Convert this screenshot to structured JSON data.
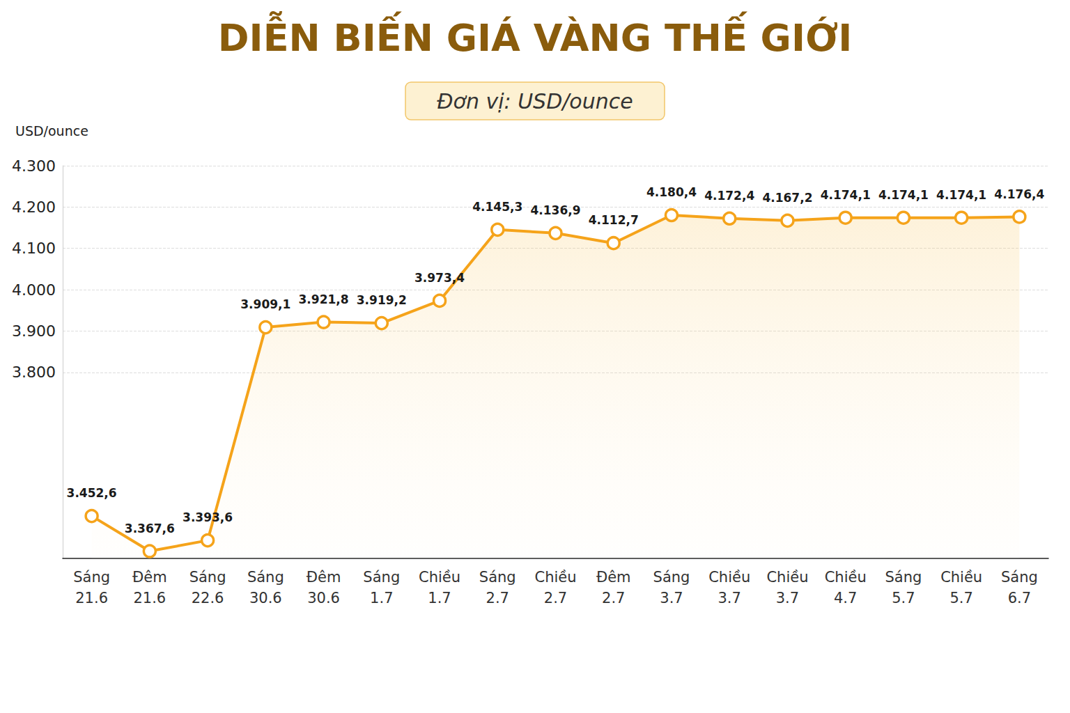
{
  "chart_data": {
    "type": "line",
    "title": "DIỄN BIẾN GIÁ VÀNG THẾ GIỚI",
    "subtitle": "Đơn vị: USD/ounce",
    "y_label": "USD/ounce",
    "categories": [
      "Sáng\n21.6",
      "Đêm\n21.6",
      "Sáng\n22.6",
      "Sáng\n30.6",
      "Đêm\n30.6",
      "Sáng\n1.7",
      "Chiều\n1.7",
      "Sáng\n2.7",
      "Chiều\n2.7",
      "Đêm\n2.7",
      "Sáng\n3.7",
      "Chiều\n3.7",
      "Chiều\n3.7",
      "Chiều\n4.7",
      "Sáng\n5.7",
      "Chiều\n5.7",
      "Sáng\n6.7"
    ],
    "values": [
      3452.6,
      3367.6,
      3393.6,
      3909.1,
      3921.8,
      3919.2,
      3973.4,
      4145.3,
      4136.9,
      4112.7,
      4180.4,
      4172.4,
      4167.2,
      4174.1,
      4174.1,
      4174.1,
      4176.4
    ],
    "value_labels": [
      "3.452,6",
      "3.367,6",
      "3.393,6",
      "3.909,1",
      "3.921,8",
      "3.919,2",
      "3.973,4",
      "4.145,3",
      "4.136,9",
      "4.112,7",
      "4.180,4",
      "4.172,4",
      "4.167,2",
      "4.174,1",
      "4.174,1",
      "4.174,1",
      "4.176,4"
    ],
    "color": "#f5a31a",
    "marker": "circle",
    "ylim": [
      3350,
      4300
    ],
    "yticks": [
      {
        "value": 3800,
        "label": "3.800"
      },
      {
        "value": 3900,
        "label": "3.900"
      },
      {
        "value": 4000,
        "label": "4.000"
      },
      {
        "value": 4100,
        "label": "4.100"
      },
      {
        "value": 4200,
        "label": "4.200"
      },
      {
        "value": 4300,
        "label": "4.300"
      }
    ],
    "grid": true,
    "data_labels": true
  }
}
